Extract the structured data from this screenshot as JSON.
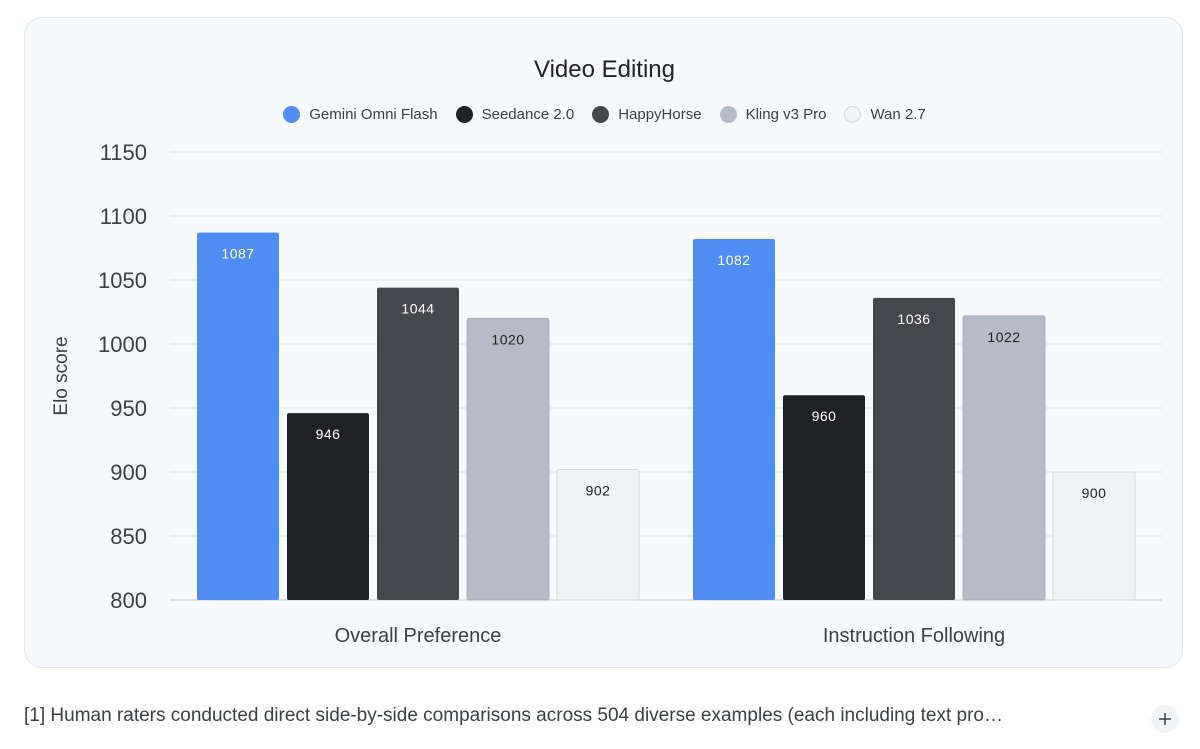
{
  "chart_data": {
    "type": "bar",
    "title": "Video Editing",
    "xlabel": "",
    "ylabel": "Elo score",
    "ylim": [
      800,
      1150
    ],
    "yticks": [
      "1150",
      "1100",
      "1050",
      "1000",
      "950",
      "900",
      "850",
      "800"
    ],
    "categories": [
      "Overall Preference",
      "Instruction Following"
    ],
    "series": [
      {
        "name": "Gemini Omni Flash",
        "color": "#4f8cf3",
        "values": [
          1087,
          1082
        ]
      },
      {
        "name": "Seedance 2.0",
        "color": "#202124",
        "values": [
          946,
          960
        ]
      },
      {
        "name": "HappyHorse",
        "color": "#45474c",
        "values": [
          1044,
          1036
        ]
      },
      {
        "name": "Kling v3 Pro",
        "color": "#b6bcc7",
        "values": [
          1020,
          1022
        ]
      },
      {
        "name": "Wan 2.7",
        "color": "#f1f2f6",
        "values": [
          902,
          900
        ]
      }
    ],
    "grid": true,
    "legend_position": "top-center"
  },
  "footnote": "[1] Human raters conducted direct side-by-side comparisons across 504 diverse examples (each including text pro…",
  "expand_icon": "plus-icon"
}
